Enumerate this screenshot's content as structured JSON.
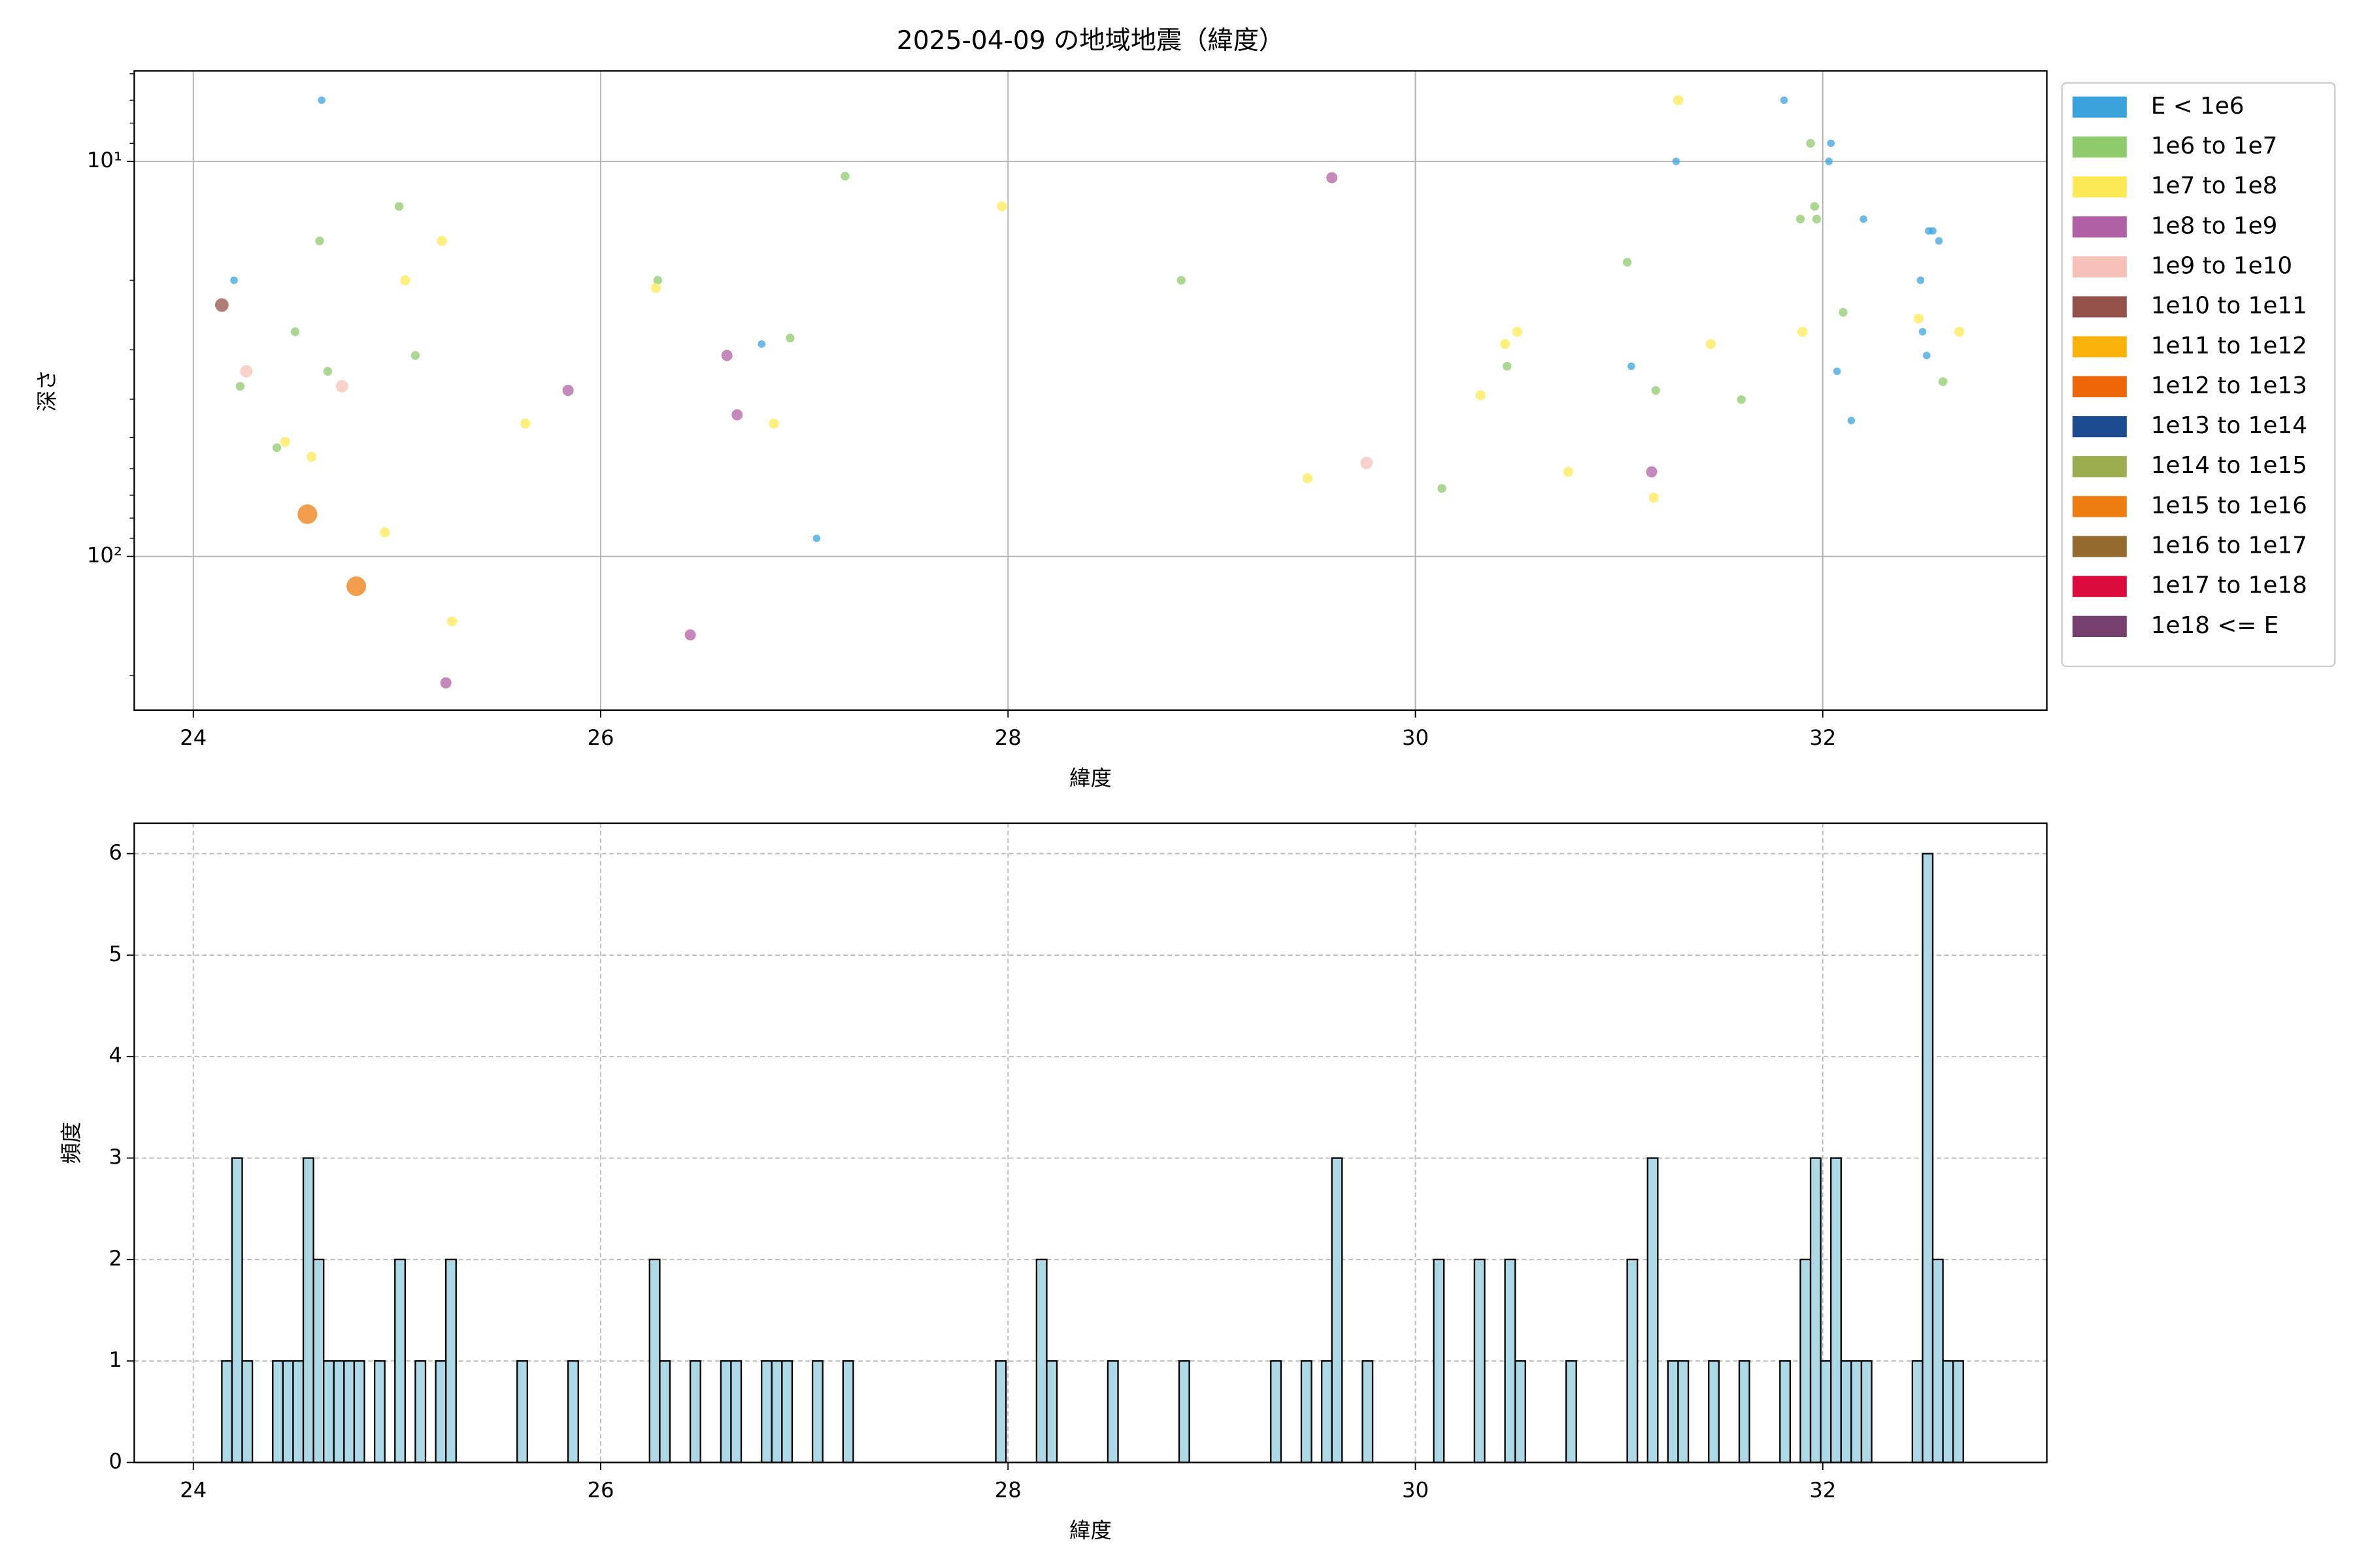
{
  "chart_data": [
    {
      "type": "scatter",
      "title": "2025-04-09 の地域地震（緯度）",
      "x_label": "緯度",
      "y_label": "深さ",
      "xlim": [
        23.71,
        33.1
      ],
      "xticks": [
        24,
        26,
        28,
        30,
        32
      ],
      "ylim": [
        245,
        5.9
      ],
      "log_y": true,
      "yticks": [
        {
          "value": 10,
          "label": "10¹"
        },
        {
          "value": 100,
          "label": "10²"
        }
      ],
      "yminorticks": [
        6,
        7,
        8,
        9,
        20,
        30,
        40,
        50,
        60,
        70,
        80,
        90,
        200
      ],
      "grid": true,
      "grid_style": "solid",
      "legend": "outside-right",
      "series": [
        {
          "name": "E < 1e6",
          "color": "#3ba3dc",
          "x": [
            24.63,
            24.2,
            26.79,
            27.06,
            31.81,
            31.28,
            32.04,
            32.03,
            32.2,
            32.52,
            32.54,
            32.57,
            32.48,
            32.49,
            32.51,
            31.06,
            32.07,
            32.14
          ],
          "values": [
            7.0,
            20.0,
            29.0,
            90.0,
            7.0,
            10.0,
            9.0,
            10.0,
            14.0,
            15.0,
            15.0,
            15.9,
            20.0,
            27.0,
            31.0,
            33.0,
            34.0,
            45.3
          ]
        },
        {
          "name": "1e6 to 1e7",
          "color": "#8fca6d",
          "x": [
            25.01,
            24.62,
            26.28,
            27.2,
            24.5,
            25.09,
            24.66,
            26.93,
            24.23,
            24.41,
            28.85,
            31.04,
            31.94,
            31.89,
            31.97,
            31.96,
            32.1,
            30.45,
            31.18,
            31.6,
            30.13,
            32.59
          ],
          "values": [
            13.0,
            15.9,
            20.0,
            10.9,
            27.0,
            31.0,
            34.0,
            28.0,
            37.1,
            53.1,
            20.0,
            18.0,
            9.0,
            14.0,
            14.0,
            13.0,
            24.1,
            33.0,
            38.0,
            40.1,
            67.3,
            36.1
          ]
        },
        {
          "name": "1e7 to 1e8",
          "color": "#fde955",
          "x": [
            31.29,
            27.97,
            25.22,
            25.04,
            26.27,
            30.5,
            30.44,
            31.9,
            32.47,
            32.67,
            31.45,
            30.32,
            25.63,
            26.85,
            24.45,
            24.58,
            29.47,
            30.75,
            31.17,
            24.94,
            25.27
          ],
          "values": [
            7.0,
            13.0,
            15.9,
            20.0,
            20.9,
            27.0,
            29.0,
            27.0,
            25.0,
            27.0,
            29.0,
            39.1,
            46.1,
            46.1,
            51.3,
            56.0,
            63.4,
            61.1,
            71.0,
            86.9,
            146
          ]
        },
        {
          "name": "1e8 to 1e9",
          "color": "#b060a4",
          "x": [
            25.84,
            26.62,
            26.67,
            26.44,
            25.24,
            31.16,
            29.59
          ],
          "values": [
            38.0,
            31.0,
            43.8,
            158,
            209,
            61.1,
            11.0
          ]
        },
        {
          "name": "1e9 to 1e10",
          "color": "#f5c1b8",
          "x": [
            24.26,
            24.73,
            29.76
          ],
          "values": [
            34.0,
            37.1,
            58.0
          ]
        },
        {
          "name": "1e10 to 1e11",
          "color": "#93514a",
          "x": [
            24.14
          ],
          "values": [
            23.1
          ]
        },
        {
          "name": "1e11 to 1e12",
          "color": "#f8b20a",
          "x": [],
          "values": []
        },
        {
          "name": "1e12 to 1e13",
          "color": "#ed6608",
          "x": [],
          "values": []
        },
        {
          "name": "1e13 to 1e14",
          "color": "#1d4b91",
          "x": [],
          "values": []
        },
        {
          "name": "1e14 to 1e15",
          "color": "#9bae4f",
          "x": [],
          "values": []
        },
        {
          "name": "1e15 to 1e16",
          "color": "#ed7d11",
          "x": [
            24.56,
            24.8
          ],
          "values": [
            78.2,
            119
          ]
        },
        {
          "name": "1e16 to 1e17",
          "color": "#956a2e",
          "x": [],
          "values": []
        },
        {
          "name": "1e17 to 1e18",
          "color": "#dc0a3d",
          "x": [],
          "values": []
        },
        {
          "name": "1e18 <= E",
          "color": "#763f6d",
          "x": [],
          "values": []
        }
      ]
    },
    {
      "type": "histogram",
      "x_label": "緯度",
      "y_label": "頻度",
      "color": "#add8e6",
      "edgecolor": "#000000",
      "xlim": [
        23.71,
        33.1
      ],
      "xticks": [
        24,
        26,
        28,
        30,
        32
      ],
      "ylim": [
        0,
        6.3
      ],
      "yticks": [
        0,
        1,
        2,
        3,
        4,
        5,
        6
      ],
      "grid": true,
      "grid_style": "dashed",
      "bins": [
        24.14,
        24.19,
        24.24,
        24.29,
        24.34,
        24.39,
        24.44,
        24.49,
        24.54,
        24.59,
        24.64,
        24.69,
        24.74,
        24.79,
        24.84,
        24.89,
        24.94,
        24.99,
        25.04,
        25.09,
        25.14,
        25.19,
        25.24,
        25.29,
        25.34,
        25.39,
        25.44,
        25.49,
        25.54,
        25.59,
        25.64,
        25.69,
        25.74,
        25.79,
        25.84,
        25.89,
        25.94,
        25.99,
        26.04,
        26.09,
        26.14,
        26.19,
        26.24,
        26.29,
        26.34,
        26.39,
        26.44,
        26.49,
        26.54,
        26.59,
        26.64,
        26.69,
        26.74,
        26.79,
        26.84,
        26.89,
        26.94,
        26.99,
        27.04,
        27.09,
        27.14,
        27.19,
        27.24,
        27.29,
        27.34,
        27.39,
        27.44,
        27.49,
        27.54,
        27.59,
        27.64,
        27.69,
        27.74,
        27.79,
        27.84,
        27.89,
        27.94,
        27.99,
        28.04,
        28.09,
        28.14,
        28.19,
        28.24,
        28.29,
        28.34,
        28.39,
        28.44,
        28.49,
        28.54,
        28.59,
        28.64,
        28.69,
        28.74,
        28.79,
        28.84,
        28.89,
        28.94,
        28.99,
        29.04,
        29.09,
        29.14,
        29.19,
        29.24,
        29.29,
        29.34,
        29.39,
        29.44,
        29.49,
        29.54,
        29.59,
        29.64,
        29.69,
        29.74,
        29.79,
        29.84,
        29.89,
        29.94,
        29.99,
        30.04,
        30.09,
        30.14,
        30.19,
        30.24,
        30.29,
        30.34,
        30.39,
        30.44,
        30.49,
        30.54,
        30.59,
        30.64,
        30.69,
        30.74,
        30.79,
        30.84,
        30.89,
        30.94,
        30.99,
        31.04,
        31.09,
        31.14,
        31.19,
        31.24,
        31.29,
        31.34,
        31.39,
        31.44,
        31.49,
        31.54,
        31.59,
        31.64,
        31.69,
        31.74,
        31.79,
        31.84,
        31.89,
        31.94,
        31.99,
        32.04,
        32.09,
        32.14,
        32.19,
        32.24,
        32.29,
        32.34,
        32.39,
        32.44,
        32.49,
        32.54,
        32.59,
        32.64,
        32.69
      ],
      "values": [
        1,
        3,
        1,
        0,
        0,
        1,
        1,
        1,
        3,
        2,
        1,
        1,
        1,
        1,
        0,
        1,
        0,
        2,
        0,
        1,
        0,
        1,
        2,
        0,
        0,
        0,
        0,
        0,
        0,
        1,
        0,
        0,
        0,
        0,
        1,
        0,
        0,
        0,
        0,
        0,
        0,
        0,
        2,
        1,
        0,
        0,
        1,
        0,
        0,
        1,
        1,
        0,
        0,
        1,
        1,
        1,
        0,
        0,
        1,
        0,
        0,
        1,
        0,
        0,
        0,
        0,
        0,
        0,
        0,
        0,
        0,
        0,
        0,
        0,
        0,
        0,
        1,
        0,
        0,
        0,
        2,
        1,
        0,
        0,
        0,
        0,
        0,
        1,
        0,
        0,
        0,
        0,
        0,
        0,
        1,
        0,
        0,
        0,
        0,
        0,
        0,
        0,
        0,
        1,
        0,
        0,
        1,
        0,
        1,
        3,
        0,
        0,
        1,
        0,
        0,
        0,
        0,
        0,
        0,
        2,
        0,
        0,
        0,
        2,
        0,
        0,
        2,
        1,
        0,
        0,
        0,
        0,
        1,
        0,
        0,
        0,
        0,
        0,
        2,
        0,
        3,
        0,
        1,
        1,
        0,
        0,
        1,
        0,
        0,
        1,
        0,
        0,
        0,
        1,
        0,
        2,
        3,
        1,
        3,
        1,
        1,
        1,
        0,
        0,
        0,
        0,
        1,
        6,
        2,
        1,
        1
      ]
    }
  ]
}
